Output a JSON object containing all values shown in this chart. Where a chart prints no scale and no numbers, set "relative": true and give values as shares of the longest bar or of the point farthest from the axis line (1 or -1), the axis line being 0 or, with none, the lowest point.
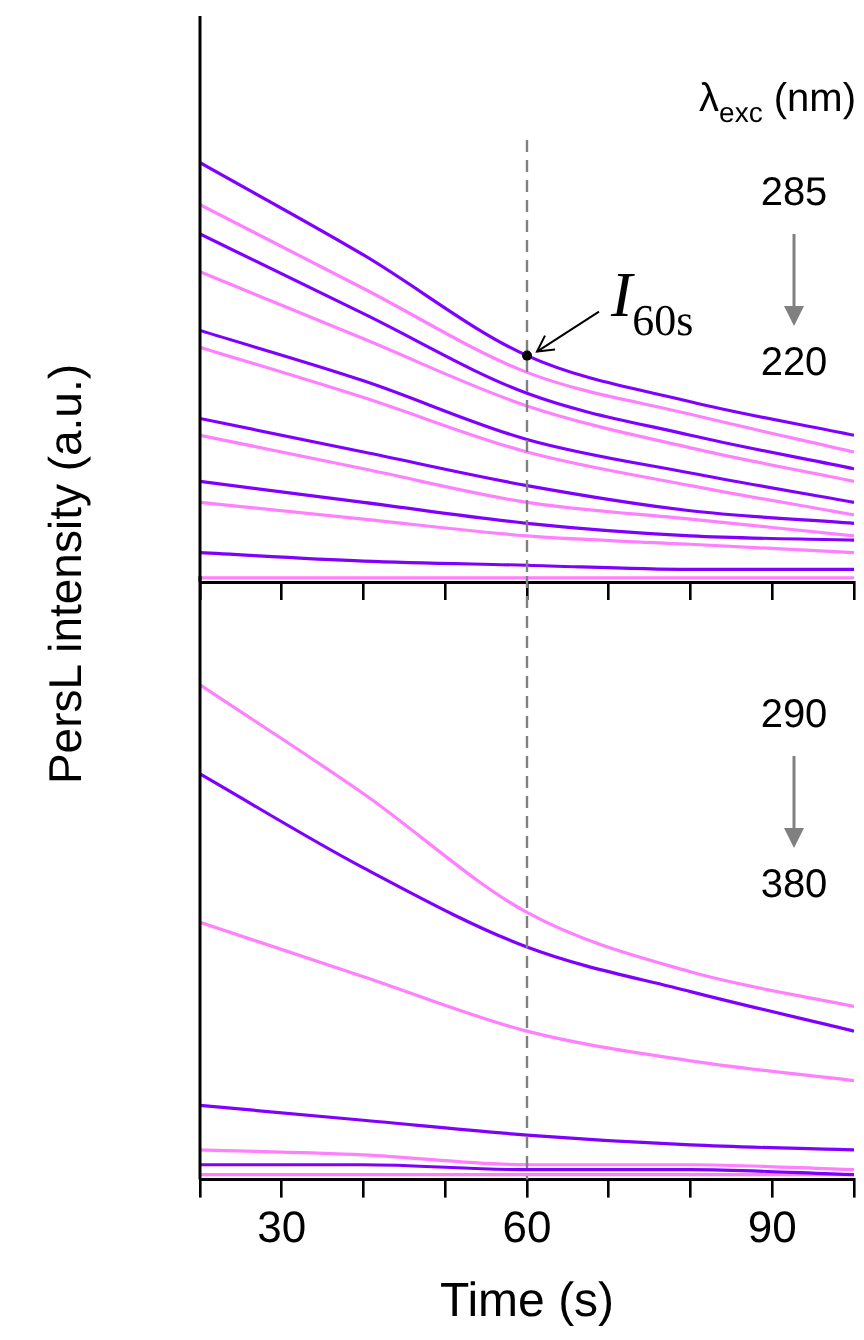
{
  "chart_data": [
    {
      "type": "line",
      "relative": true,
      "ylabel": "PersL intensity (a.u.)",
      "x": [
        20,
        40,
        60,
        80,
        100
      ],
      "xlim": [
        20,
        100
      ],
      "xticks": [
        {
          "value": 20,
          "label": null
        },
        30,
        {
          "value": 40,
          "label": null
        },
        {
          "value": 50,
          "label": null
        },
        60,
        {
          "value": 70,
          "label": null
        },
        {
          "value": 80,
          "label": null
        },
        90,
        {
          "value": 100,
          "label": null
        }
      ],
      "tick_labels": false,
      "line_style": "solid",
      "series": [
        {
          "color": "#8000ff",
          "values": [
            1.0,
            0.78,
            0.54,
            0.43,
            0.35
          ]
        },
        {
          "color": "#ff80ff",
          "values": [
            0.9,
            0.7,
            0.5,
            0.4,
            0.31
          ]
        },
        {
          "color": "#8000ff",
          "values": [
            0.83,
            0.64,
            0.45,
            0.35,
            0.27
          ]
        },
        {
          "color": "#ff80ff",
          "values": [
            0.74,
            0.58,
            0.42,
            0.32,
            0.24
          ]
        },
        {
          "color": "#8000ff",
          "values": [
            0.6,
            0.48,
            0.34,
            0.26,
            0.19
          ]
        },
        {
          "color": "#ff80ff",
          "values": [
            0.56,
            0.44,
            0.31,
            0.23,
            0.16
          ]
        },
        {
          "color": "#8000ff",
          "values": [
            0.39,
            0.31,
            0.23,
            0.17,
            0.14
          ]
        },
        {
          "color": "#ff80ff",
          "values": [
            0.35,
            0.27,
            0.19,
            0.15,
            0.11
          ]
        },
        {
          "color": "#8000ff",
          "values": [
            0.24,
            0.19,
            0.14,
            0.11,
            0.1
          ]
        },
        {
          "color": "#ff80ff",
          "values": [
            0.19,
            0.15,
            0.11,
            0.09,
            0.07
          ]
        },
        {
          "color": "#8000ff",
          "values": [
            0.07,
            0.05,
            0.04,
            0.03,
            0.03
          ]
        },
        {
          "color": "#ff80ff",
          "values": [
            0.01,
            0.01,
            0.01,
            0.01,
            0.01
          ]
        }
      ],
      "ref_lines": [
        {
          "axis": "x",
          "value": 60,
          "color": "#808080",
          "line_style": "dashed"
        }
      ],
      "annotations": [
        "λ$_{exc}$ (nm)",
        "285",
        "220",
        {
          "text": "I$_{60s}$",
          "x": 60,
          "y": 0.54
        }
      ]
    },
    {
      "type": "line",
      "relative": true,
      "xlabel": "Time (s)",
      "x": [
        20,
        40,
        60,
        80,
        100
      ],
      "xlim": [
        20,
        100
      ],
      "xticks": [
        {
          "value": 20,
          "label": null
        },
        30,
        {
          "value": 40,
          "label": null
        },
        {
          "value": 50,
          "label": null
        },
        60,
        {
          "value": 70,
          "label": null
        },
        {
          "value": 80,
          "label": null
        },
        90,
        {
          "value": 100,
          "label": null
        }
      ],
      "tick_labels": "x",
      "line_style": "solid",
      "series": [
        {
          "color": "#ff80ff",
          "values": [
            1.0,
            0.78,
            0.54,
            0.42,
            0.35
          ]
        },
        {
          "color": "#8000ff",
          "values": [
            0.82,
            0.63,
            0.47,
            0.38,
            0.3
          ]
        },
        {
          "color": "#ff80ff",
          "values": [
            0.52,
            0.41,
            0.3,
            0.24,
            0.2
          ]
        },
        {
          "color": "#8000ff",
          "values": [
            0.15,
            0.12,
            0.09,
            0.07,
            0.06
          ]
        },
        {
          "color": "#ff80ff",
          "values": [
            0.06,
            0.05,
            0.03,
            0.03,
            0.02
          ]
        },
        {
          "color": "#8000ff",
          "values": [
            0.03,
            0.03,
            0.02,
            0.02,
            0.01
          ]
        },
        {
          "color": "#ff80ff",
          "values": [
            0.01,
            0.01,
            0.01,
            0.01,
            0.01
          ]
        }
      ],
      "ref_lines": [
        {
          "axis": "x",
          "value": 60,
          "color": "#808080",
          "line_style": "dashed"
        }
      ],
      "annotations": [
        "290",
        "380"
      ]
    }
  ]
}
